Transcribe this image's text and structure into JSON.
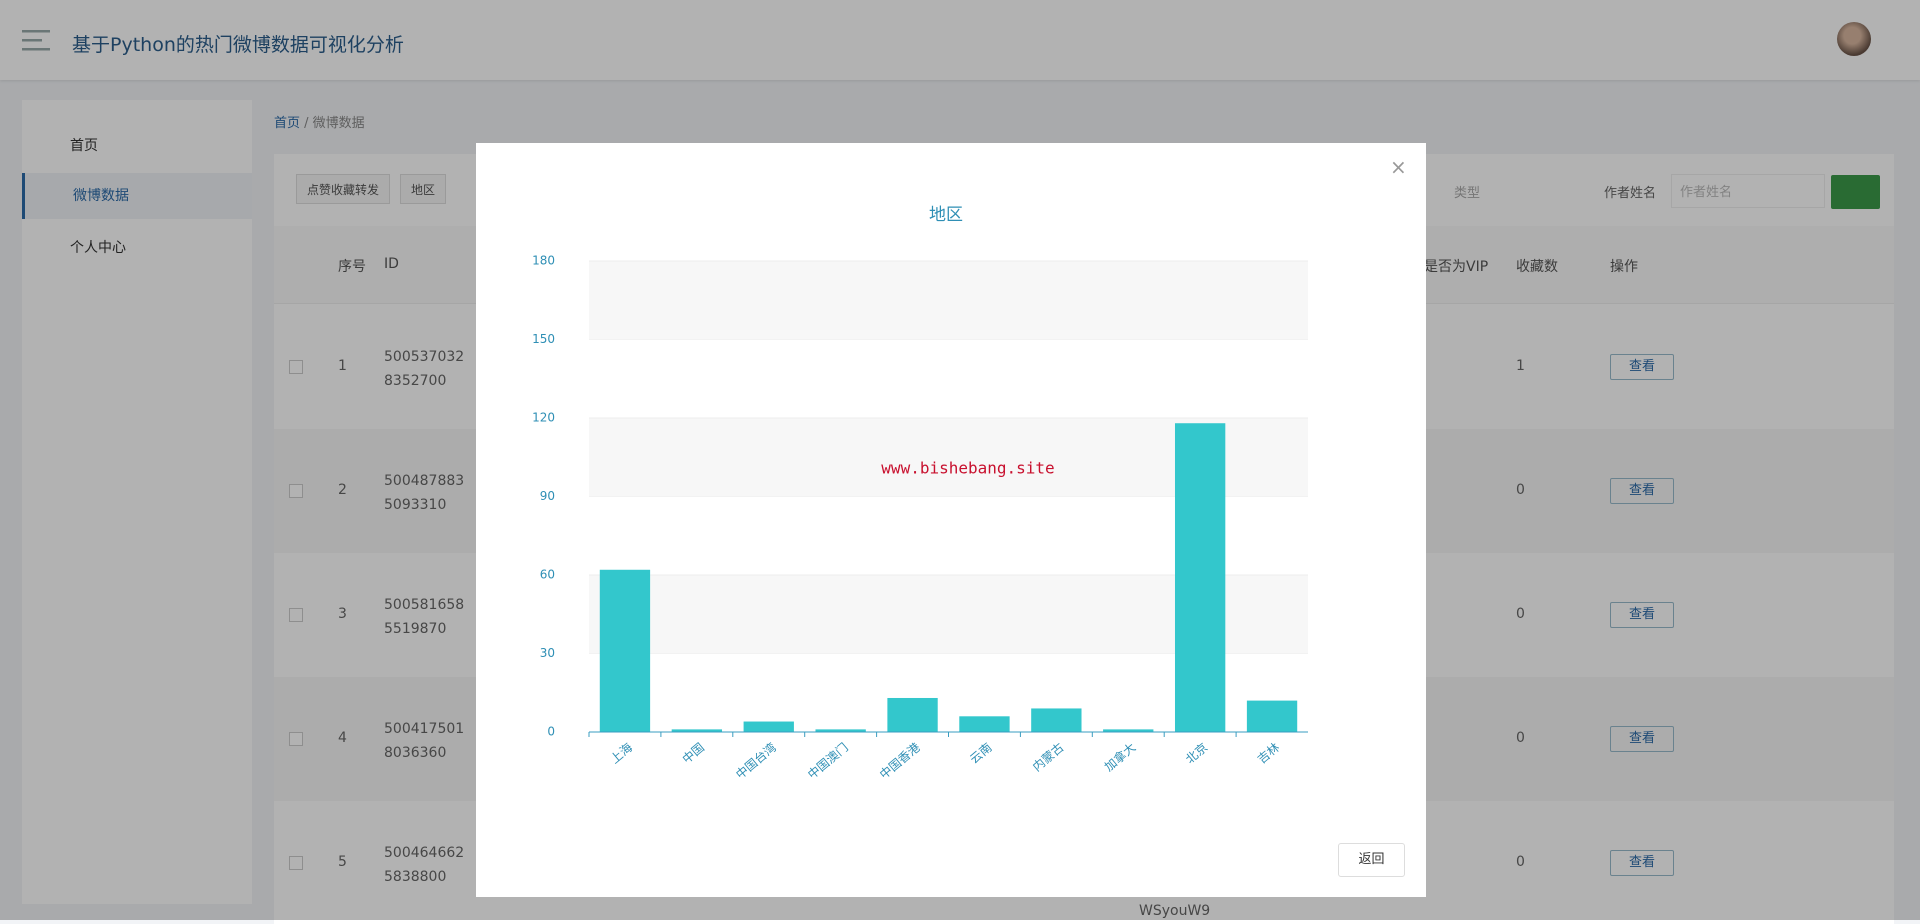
{
  "header": {
    "title": "基于Python的热门微博数据可视化分析"
  },
  "sidebar": {
    "items": [
      "首页",
      "微博数据",
      "个人中心"
    ]
  },
  "breadcrumb": [
    "首页",
    "微博数据"
  ],
  "toolbar": {
    "buttons": [
      "点赞收藏转发",
      "地区"
    ]
  },
  "search": {
    "type_placeholder": "类型",
    "author_label": "作者姓名",
    "author_placeholder": "作者姓名"
  },
  "table": {
    "headers": [
      "序号",
      "ID",
      "是否为VIP",
      "收藏数",
      "操作"
    ],
    "rows": [
      {
        "index": "1",
        "id": "5005370328352700",
        "fav": "1",
        "action": "查看"
      },
      {
        "index": "2",
        "id": "5004878835093310",
        "fav": "0",
        "action": "查看"
      },
      {
        "index": "3",
        "id": "5005816585519870",
        "fav": "0",
        "action": "查看"
      },
      {
        "index": "4",
        "id": "5004175018036360",
        "fav": "0",
        "action": "查看"
      },
      {
        "index": "5",
        "id": "5004646625838800",
        "fav": "0",
        "action": "查看",
        "author": "WSyouW9"
      }
    ]
  },
  "modal": {
    "close": "×",
    "button": "返回"
  },
  "chart_data": {
    "type": "bar",
    "title": "地区",
    "annotation": "www.bishebang.site",
    "categories": [
      "上海",
      "中国",
      "中国台湾",
      "中国澳门",
      "中国香港",
      "云南",
      "内蒙古",
      "加拿大",
      "北京",
      "吉林"
    ],
    "values": [
      62,
      1,
      4,
      1,
      13,
      6,
      9,
      1,
      118,
      12
    ],
    "color": "#33c7cc",
    "ylim": [
      0,
      180
    ],
    "yticks": [
      0,
      30,
      60,
      90,
      120,
      150,
      180
    ],
    "split_area": true
  }
}
